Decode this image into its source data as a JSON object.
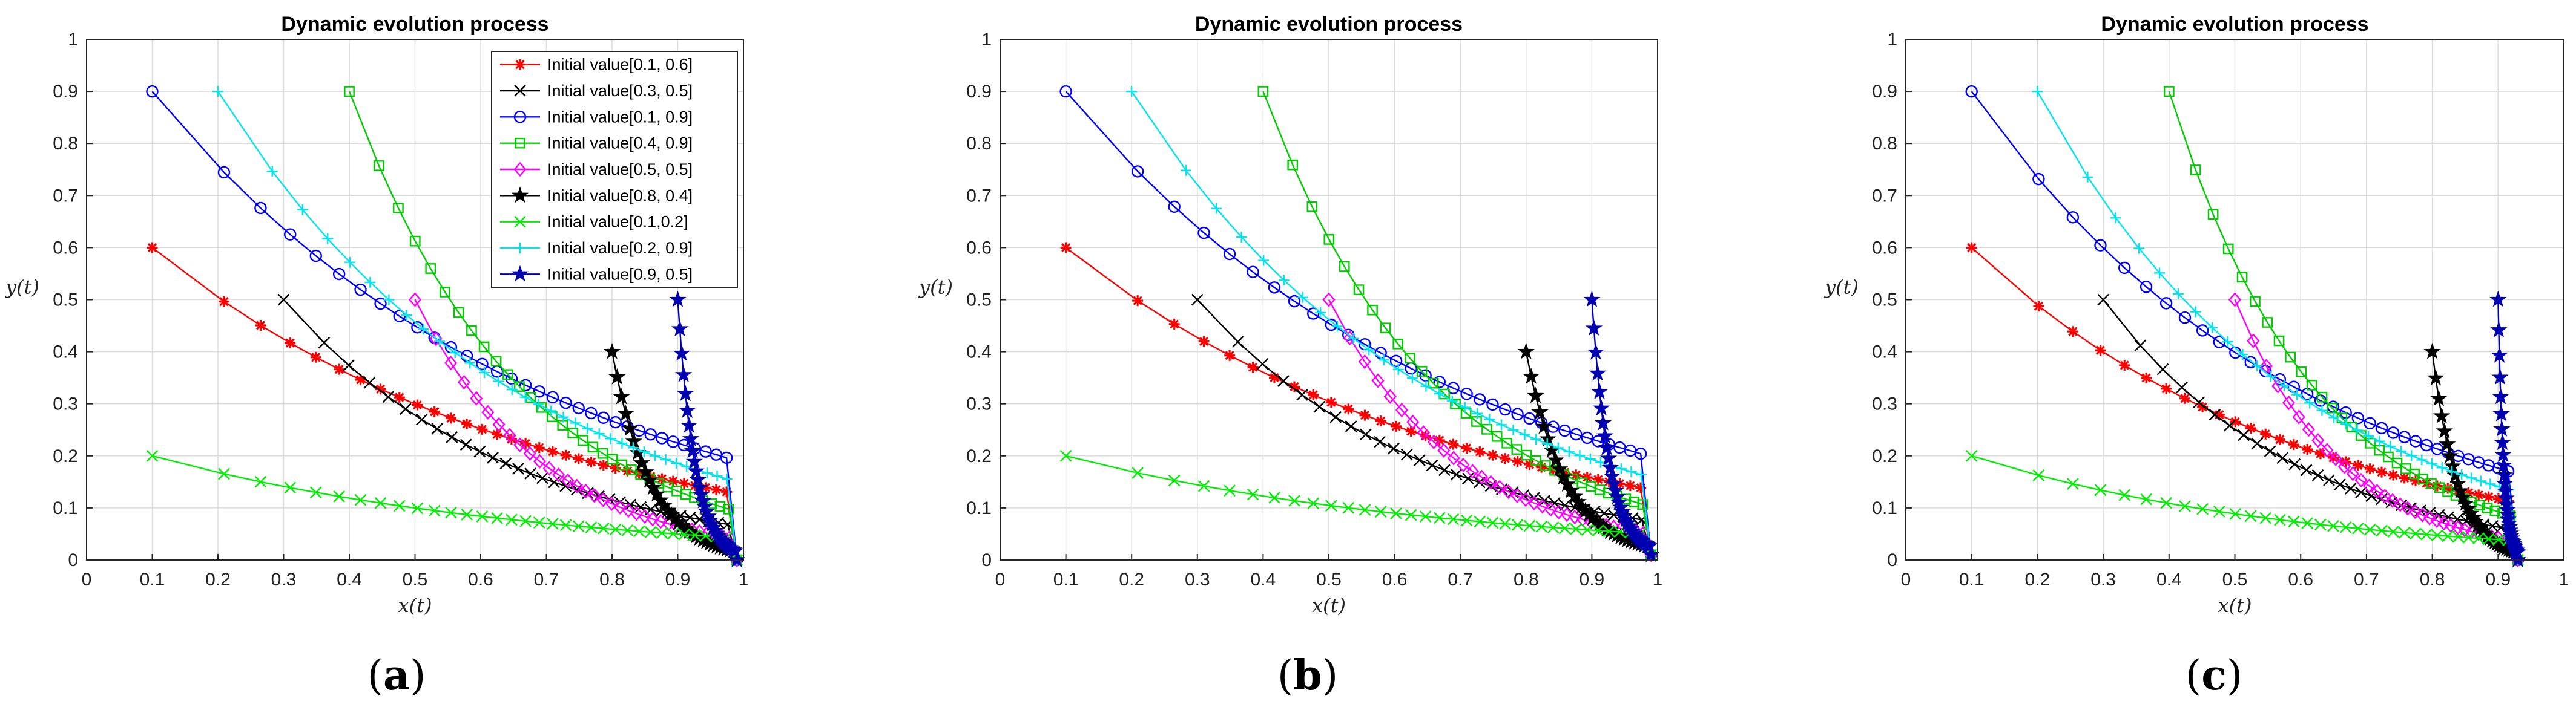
{
  "chart_data": [
    {
      "type": "line",
      "panel_label": "(a)",
      "panel_letter": "a",
      "title": "Dynamic evolution process",
      "xlabel": "x(t)",
      "ylabel": "y(t)",
      "xlim": [
        0,
        1
      ],
      "ylim": [
        0,
        1
      ],
      "grid": true,
      "x_ticks": [
        "0",
        "0.1",
        "0.2",
        "0.3",
        "0.4",
        "0.5",
        "0.6",
        "0.7",
        "0.8",
        "0.9",
        "1"
      ],
      "y_ticks": [
        "0",
        "0.1",
        "0.2",
        "0.3",
        "0.4",
        "0.5",
        "0.6",
        "0.7",
        "0.8",
        "0.9",
        "1"
      ],
      "legend": "top-right",
      "end_point": [
        0.99,
        0.0
      ],
      "series": [
        {
          "name": "Initial value[0.1, 0.6]",
          "color": "#ff0000",
          "marker": "asterisk",
          "start": [
            0.1,
            0.6
          ]
        },
        {
          "name": "Initial value[0.3, 0.5]",
          "color": "#000000",
          "marker": "x",
          "start": [
            0.3,
            0.5
          ]
        },
        {
          "name": "Initial value[0.1, 0.9]",
          "color": "#0000ff",
          "marker": "circle",
          "start": [
            0.1,
            0.9
          ]
        },
        {
          "name": "Initial value[0.4, 0.9]",
          "color": "#00cc00",
          "marker": "square",
          "start": [
            0.4,
            0.9
          ]
        },
        {
          "name": "Initial value[0.5, 0.5]",
          "color": "#ff00ff",
          "marker": "diamond",
          "start": [
            0.5,
            0.5
          ]
        },
        {
          "name": "Initial value[0.8, 0.4]",
          "color": "#000000",
          "marker": "star",
          "start": [
            0.8,
            0.4
          ]
        },
        {
          "name": "Initial value[0.1,0.2]",
          "color": "#00ee00",
          "marker": "x",
          "start": [
            0.1,
            0.2
          ]
        },
        {
          "name": "Initial value[0.2, 0.9]",
          "color": "#00e5ee",
          "marker": "plus",
          "start": [
            0.2,
            0.9
          ]
        },
        {
          "name": "Initial value[0.9, 0.5]",
          "color": "#0000b0",
          "marker": "star",
          "start": [
            0.9,
            0.5
          ]
        }
      ]
    },
    {
      "type": "line",
      "panel_label": "(b)",
      "panel_letter": "b",
      "title": "Dynamic evolution process",
      "xlabel": "x(t)",
      "ylabel": "y(t)",
      "xlim": [
        0,
        1
      ],
      "ylim": [
        0,
        1
      ],
      "grid": true,
      "x_ticks": [
        "0",
        "0.1",
        "0.2",
        "0.3",
        "0.4",
        "0.5",
        "0.6",
        "0.7",
        "0.8",
        "0.9",
        "1"
      ],
      "y_ticks": [
        "0",
        "0.1",
        "0.2",
        "0.3",
        "0.4",
        "0.5",
        "0.6",
        "0.7",
        "0.8",
        "0.9",
        "1"
      ],
      "legend": "none",
      "end_point": [
        0.99,
        0.01
      ],
      "series": [
        {
          "name": "Initial value[0.1, 0.6]",
          "color": "#ff0000",
          "marker": "asterisk",
          "start": [
            0.1,
            0.6
          ]
        },
        {
          "name": "Initial value[0.3, 0.5]",
          "color": "#000000",
          "marker": "x",
          "start": [
            0.3,
            0.5
          ]
        },
        {
          "name": "Initial value[0.1, 0.9]",
          "color": "#0000ff",
          "marker": "circle",
          "start": [
            0.1,
            0.9
          ]
        },
        {
          "name": "Initial value[0.4, 0.9]",
          "color": "#00cc00",
          "marker": "square",
          "start": [
            0.4,
            0.9
          ]
        },
        {
          "name": "Initial value[0.5, 0.5]",
          "color": "#ff00ff",
          "marker": "diamond",
          "start": [
            0.5,
            0.5
          ]
        },
        {
          "name": "Initial value[0.8, 0.4]",
          "color": "#000000",
          "marker": "star",
          "start": [
            0.8,
            0.4
          ]
        },
        {
          "name": "Initial value[0.1,0.2]",
          "color": "#00ee00",
          "marker": "x",
          "start": [
            0.1,
            0.2
          ]
        },
        {
          "name": "Initial value[0.2, 0.9]",
          "color": "#00e5ee",
          "marker": "plus",
          "start": [
            0.2,
            0.9
          ]
        },
        {
          "name": "Initial value[0.9, 0.5]",
          "color": "#0000b0",
          "marker": "star",
          "start": [
            0.9,
            0.5
          ]
        }
      ]
    },
    {
      "type": "line",
      "panel_label": "(c)",
      "panel_letter": "c",
      "title": "Dynamic evolution process",
      "xlabel": "x(t)",
      "ylabel": "y(t)",
      "xlim": [
        0,
        1
      ],
      "ylim": [
        0,
        1
      ],
      "grid": true,
      "x_ticks": [
        "0",
        "0.1",
        "0.2",
        "0.3",
        "0.4",
        "0.5",
        "0.6",
        "0.7",
        "0.8",
        "0.9",
        "1"
      ],
      "y_ticks": [
        "0",
        "0.1",
        "0.2",
        "0.3",
        "0.4",
        "0.5",
        "0.6",
        "0.7",
        "0.8",
        "0.9",
        "1"
      ],
      "legend": "none",
      "end_point": [
        0.93,
        0.0
      ],
      "series": [
        {
          "name": "Initial value[0.1, 0.6]",
          "color": "#ff0000",
          "marker": "asterisk",
          "start": [
            0.1,
            0.6
          ]
        },
        {
          "name": "Initial value[0.3, 0.5]",
          "color": "#000000",
          "marker": "x",
          "start": [
            0.3,
            0.5
          ]
        },
        {
          "name": "Initial value[0.1, 0.9]",
          "color": "#0000ff",
          "marker": "circle",
          "start": [
            0.1,
            0.9
          ]
        },
        {
          "name": "Initial value[0.4, 0.9]",
          "color": "#00cc00",
          "marker": "square",
          "start": [
            0.4,
            0.9
          ]
        },
        {
          "name": "Initial value[0.5, 0.5]",
          "color": "#ff00ff",
          "marker": "diamond",
          "start": [
            0.5,
            0.5
          ]
        },
        {
          "name": "Initial value[0.8, 0.4]",
          "color": "#000000",
          "marker": "star",
          "start": [
            0.8,
            0.4
          ]
        },
        {
          "name": "Initial value[0.1,0.2]",
          "color": "#00ee00",
          "marker": "x",
          "start": [
            0.1,
            0.2
          ]
        },
        {
          "name": "Initial value[0.2, 0.9]",
          "color": "#00e5ee",
          "marker": "plus",
          "start": [
            0.2,
            0.9
          ]
        },
        {
          "name": "Initial value[0.9, 0.5]",
          "color": "#0000b0",
          "marker": "star",
          "start": [
            0.9,
            0.5
          ]
        }
      ]
    }
  ]
}
